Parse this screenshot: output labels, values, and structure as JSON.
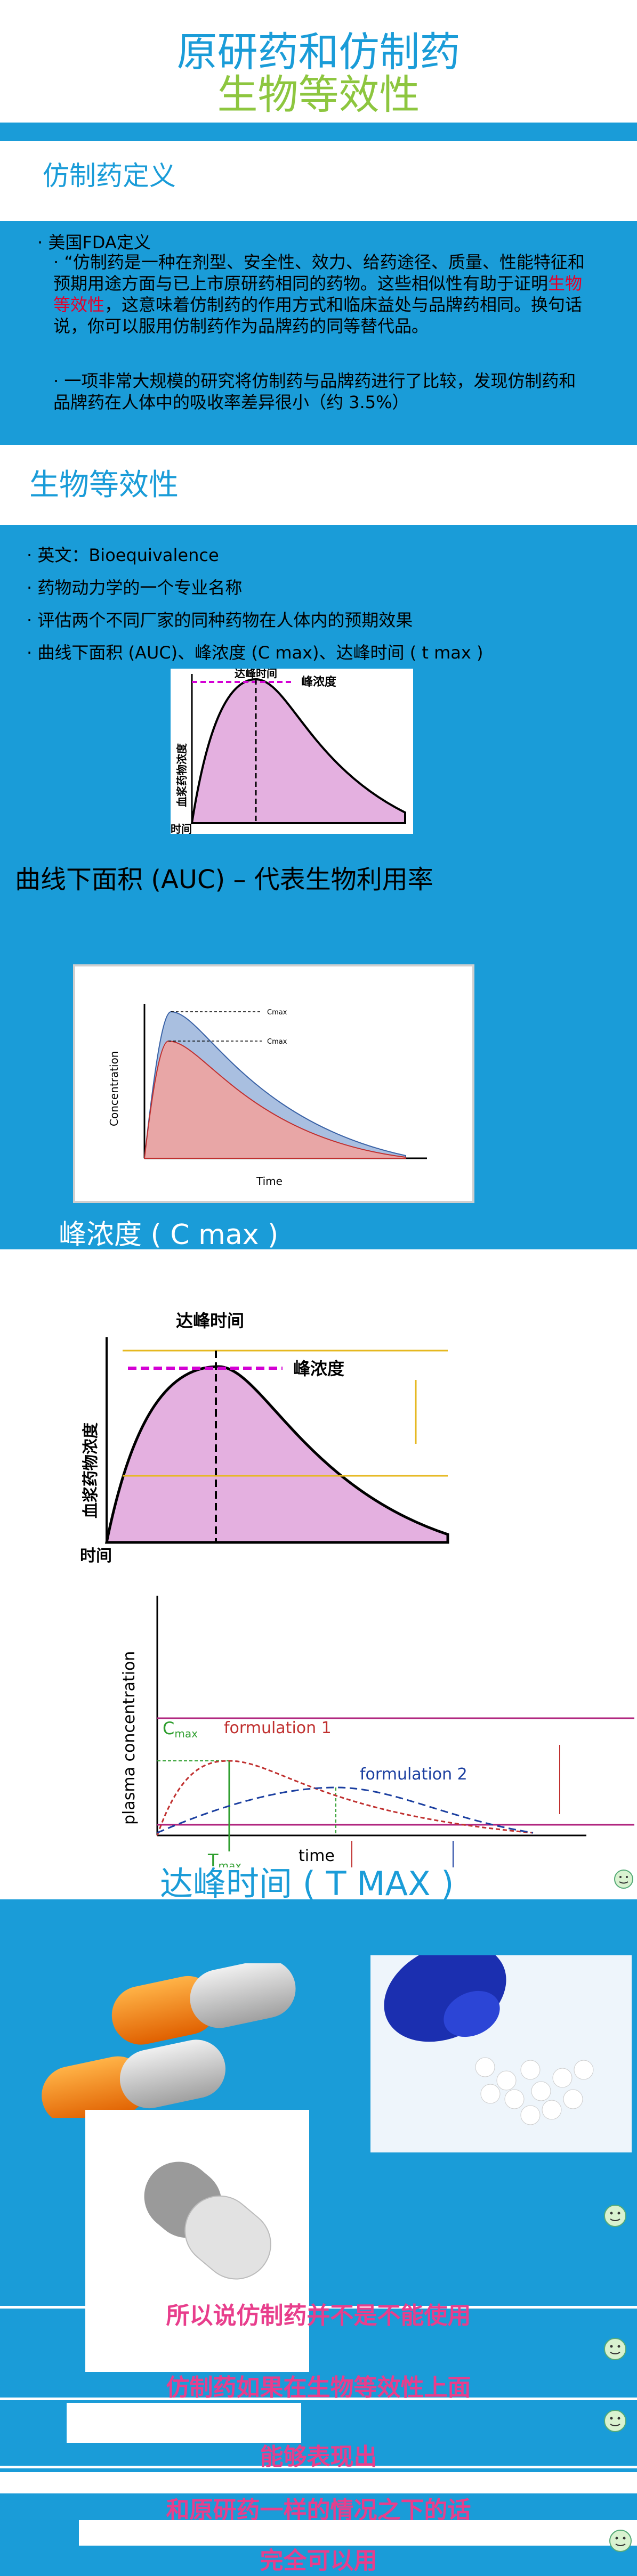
{
  "slides": {
    "title": {
      "line1": "原研药和仿制药",
      "line2": "生物等效性"
    },
    "definition": {
      "heading": "仿制药定义",
      "bullet1": "美国FDA定义",
      "quote_part1": "“仿制药是一种在剂型、安全性、效力、给药途径、质量、性能特征和预期用途方面与已上市原研药相同的药物。这些相似性有助于证明",
      "quote_highlight": "生物等效性",
      "quote_part2": "，这意味着仿制药的作用方式和临床益处与品牌药相同。换句话说，你可以服用仿制药作为品牌药的同等替代品。",
      "bullet3": "一项非常大规模的研究将仿制药与品牌药进行了比较，发现仿制药和品牌药在人体中的吸收率差异很小（约 3.5%）"
    },
    "bioequivalence": {
      "heading": "生物等效性",
      "items": [
        "英文：Bioequivalence",
        "药物动力学的一个专业名称",
        "评估两个不同厂家的同种药物在人体内的预期效果",
        "曲线下面积 (AUC)、峰浓度 (C max)、达峰时间 ( t max )"
      ],
      "chart": {
        "peak_time": "达峰时间",
        "peak_conc": "峰浓度",
        "yaxis": "血浆药物浓度",
        "xaxis": "时间"
      }
    },
    "auc": {
      "heading": "曲线下面积 (AUC) – 代表生物利用率",
      "chart": {
        "ylabel": "Concentration",
        "xlabel": "Time",
        "c1": "Cmax",
        "c2": "Cmax"
      }
    },
    "cmax": {
      "heading": "峰浓度 ( C max )",
      "chart": {
        "peak_time": "达峰时间",
        "peak_conc": "峰浓度",
        "yaxis": "血浆药物浓度",
        "xaxis": "时间"
      }
    },
    "tmax": {
      "caption": "达峰时间 ( T MAX )",
      "chart": {
        "ylabel": "plasma concentration",
        "cmax": "C",
        "cmax_sub": "max",
        "f1": "formulation 1",
        "f2": "formulation 2",
        "tmax": "T",
        "tmax_sub": "max",
        "time": "time"
      }
    },
    "photos": {
      "subtitles": [
        "所以说仿制药并不是不能使用",
        "仿制药如果在生物等效性上面",
        "能够表现出",
        "和原研药一样的情况之下的话",
        "完全可以用"
      ]
    }
  },
  "colors": {
    "brand_blue": "#1a9cd8",
    "green": "#8dc63f",
    "highlight_red": "#e4002b",
    "subtitle_pink": "#e83e8c",
    "curve_fill": "#e4b0e0"
  }
}
